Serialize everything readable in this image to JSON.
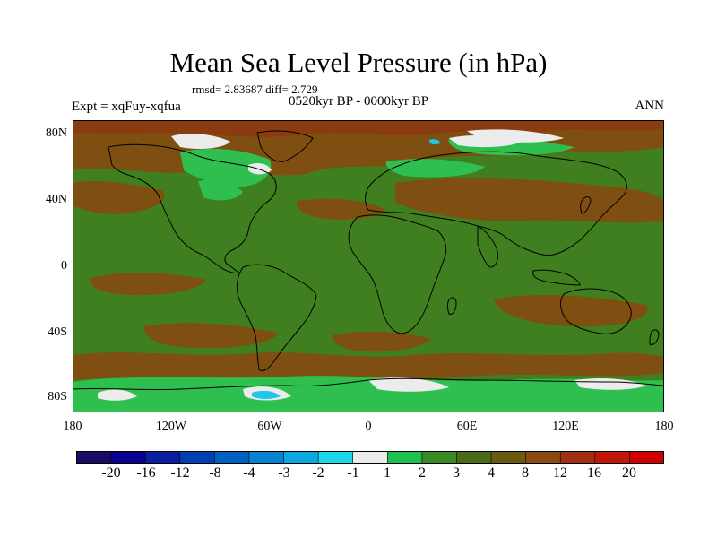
{
  "title": "Mean Sea Level Pressure (in hPa)",
  "stats_line": "rmsd= 2.83687 diff= 2.729",
  "experiment_label": "Expt = xqFuy-xqfua",
  "period_label": "0520kyr BP - 0000kyr BP",
  "season_label": "ANN",
  "map": {
    "y_axis_labels": [
      "80N",
      "40N",
      "0",
      "40S",
      "80S"
    ],
    "x_axis_labels": [
      "180",
      "120W",
      "60W",
      "0",
      "60E",
      "120E",
      "180"
    ],
    "colors": {
      "background_field": "#3f7f1f",
      "land_positive": "#6e5012",
      "brown": "#7f4f12",
      "dark_brown": "#8a3c10",
      "green": "#2fbf4f",
      "white": "#ececec",
      "cyan": "#1ec8e8",
      "coast": "#000000"
    }
  },
  "colorbar": {
    "colors": [
      "#1a0b66",
      "#08008f",
      "#0a1f9e",
      "#0040b0",
      "#0060c0",
      "#0a82d2",
      "#0ea8e0",
      "#1ed8e8",
      "#ebebeb",
      "#20c050",
      "#3a8a24",
      "#4a6a18",
      "#6a5a10",
      "#8a4a10",
      "#a03010",
      "#c01808",
      "#d00000"
    ],
    "labels": [
      "-20",
      "-16",
      "-12",
      "-8",
      "-4",
      "-3",
      "-2",
      "-1",
      "1",
      "2",
      "3",
      "4",
      "8",
      "12",
      "16",
      "20"
    ]
  }
}
